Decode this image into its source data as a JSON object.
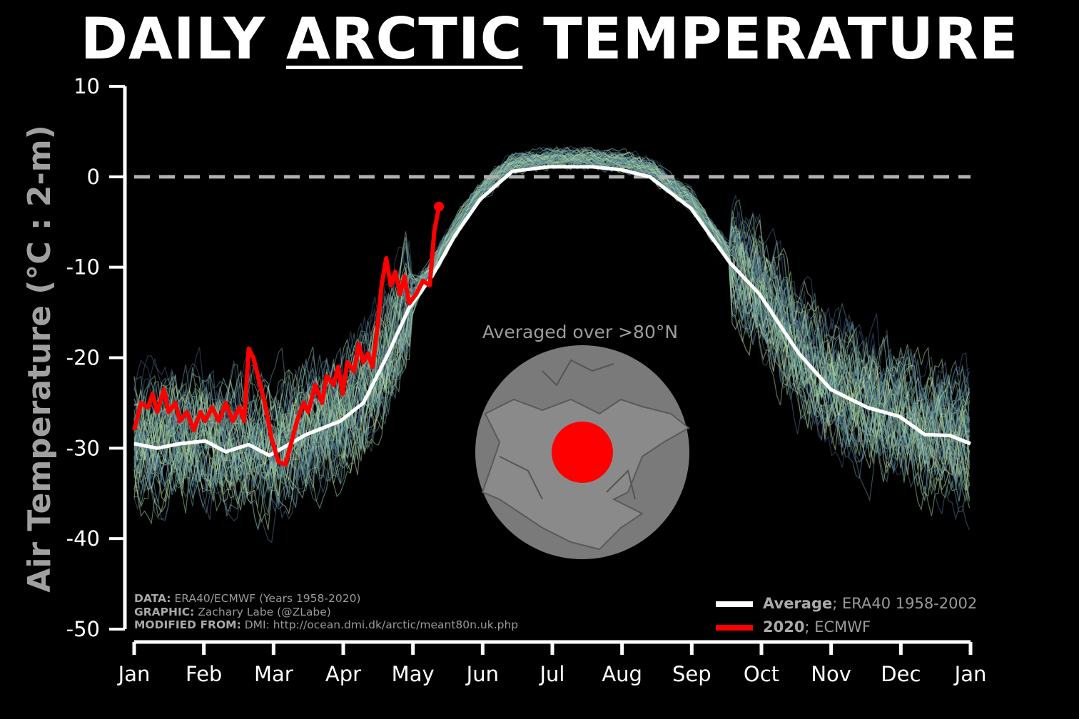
{
  "title": {
    "pre": "DAILY ",
    "underlined": "ARCTIC",
    "post": " TEMPERATURE"
  },
  "chart_data": {
    "type": "line",
    "title": "DAILY ARCTIC TEMPERATURE",
    "ylabel": "Air Temperature (°C : 2-m)",
    "xlabel": "",
    "ylim": [
      -50,
      10
    ],
    "yticks": [
      10,
      0,
      -10,
      -20,
      -30,
      -40,
      -50
    ],
    "xticks": [
      "Jan",
      "Feb",
      "Mar",
      "Apr",
      "May",
      "Jun",
      "Jul",
      "Aug",
      "Sep",
      "Oct",
      "Nov",
      "Dec",
      "Jan"
    ],
    "reference_line": {
      "value": 0,
      "style": "dashed",
      "color": "#b0b0b0"
    },
    "series": [
      {
        "name": "Average",
        "label_bold": "Average",
        "label_rest": "; ERA40 1958-2002",
        "color": "#ffffff",
        "points": [
          [
            0,
            -29.5
          ],
          [
            10,
            -30
          ],
          [
            20,
            -29.5
          ],
          [
            31,
            -29.2
          ],
          [
            40,
            -30.4
          ],
          [
            50,
            -29.6
          ],
          [
            59,
            -30.8
          ],
          [
            66,
            -29.8
          ],
          [
            75,
            -28.5
          ],
          [
            90,
            -27
          ],
          [
            100,
            -25
          ],
          [
            110,
            -20
          ],
          [
            120,
            -14.5
          ],
          [
            130,
            -11
          ],
          [
            140,
            -6.5
          ],
          [
            151,
            -2.5
          ],
          [
            165,
            0.6
          ],
          [
            181,
            1.1
          ],
          [
            200,
            1.1
          ],
          [
            212,
            0.8
          ],
          [
            225,
            0
          ],
          [
            243,
            -3.5
          ],
          [
            260,
            -9.5
          ],
          [
            273,
            -13
          ],
          [
            290,
            -19.5
          ],
          [
            304,
            -23.5
          ],
          [
            320,
            -25.5
          ],
          [
            334,
            -26.5
          ],
          [
            345,
            -28.5
          ],
          [
            356,
            -28.6
          ],
          [
            365,
            -29.5
          ]
        ]
      },
      {
        "name": "2020",
        "label_bold": "2020",
        "label_rest": "; ECMWF",
        "color": "#ff0000",
        "points": [
          [
            0,
            -28
          ],
          [
            3,
            -25
          ],
          [
            6,
            -25.5
          ],
          [
            8,
            -24
          ],
          [
            10,
            -26
          ],
          [
            13,
            -23.5
          ],
          [
            15,
            -26
          ],
          [
            18,
            -25
          ],
          [
            20,
            -27
          ],
          [
            23,
            -26
          ],
          [
            26,
            -28
          ],
          [
            29,
            -26
          ],
          [
            31,
            -27
          ],
          [
            34,
            -25.5
          ],
          [
            37,
            -27
          ],
          [
            40,
            -25
          ],
          [
            43,
            -27
          ],
          [
            46,
            -25.5
          ],
          [
            48,
            -27
          ],
          [
            50,
            -19
          ],
          [
            52,
            -20
          ],
          [
            54,
            -22
          ],
          [
            57,
            -25
          ],
          [
            60,
            -29
          ],
          [
            63,
            -31.5
          ],
          [
            66,
            -31.8
          ],
          [
            68,
            -30
          ],
          [
            71,
            -27
          ],
          [
            74,
            -25
          ],
          [
            76,
            -26
          ],
          [
            79,
            -23
          ],
          [
            82,
            -25
          ],
          [
            84,
            -22
          ],
          [
            87,
            -23
          ],
          [
            89,
            -21
          ],
          [
            91,
            -24
          ],
          [
            93,
            -20.5
          ],
          [
            96,
            -21.5
          ],
          [
            98,
            -18.5
          ],
          [
            100,
            -20.5
          ],
          [
            102,
            -19.5
          ],
          [
            104,
            -21
          ],
          [
            106,
            -17
          ],
          [
            108,
            -12
          ],
          [
            110,
            -9
          ],
          [
            112,
            -12
          ],
          [
            114,
            -10.5
          ],
          [
            116,
            -13
          ],
          [
            118,
            -11
          ],
          [
            120,
            -14
          ],
          [
            123,
            -13
          ],
          [
            126,
            -11.5
          ],
          [
            129,
            -12
          ],
          [
            131,
            -6
          ],
          [
            133,
            -3.3
          ]
        ]
      }
    ],
    "ensemble": {
      "name": "Years 1958-2020",
      "count": 60,
      "spread_degC_winter": 5,
      "spread_degC_summer": 0.8
    },
    "inset_label": "Averaged over >80°N"
  },
  "credits": {
    "data_k": "DATA:",
    "data_v": " ERA40/ECMWF (Years 1958-2020)",
    "graphic_k": "GRAPHIC:",
    "graphic_v": " Zachary Labe (@ZLabe)",
    "mod_k": "MODIFIED FROM:",
    "mod_v": " DMI: http://ocean.dmi.dk/arctic/meant80n.uk.php"
  }
}
